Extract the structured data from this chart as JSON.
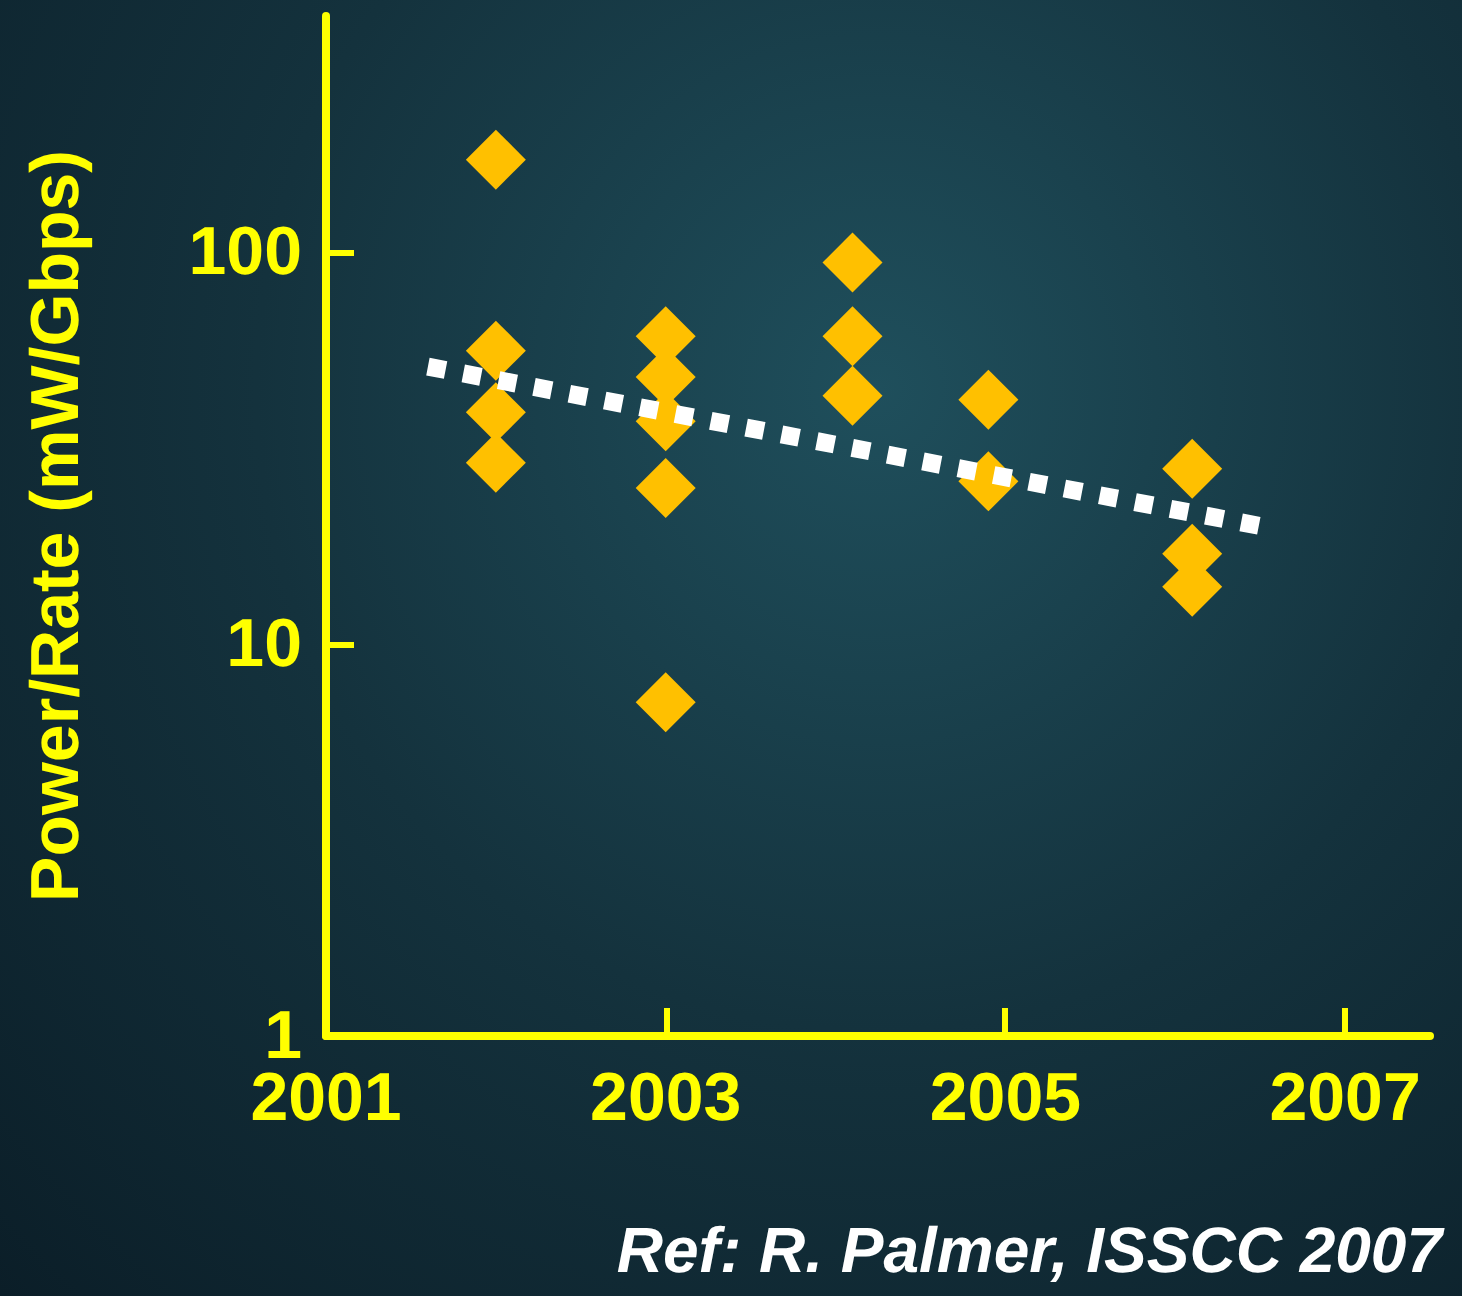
{
  "chart_data": {
    "type": "scatter",
    "ylabel": "Power/Rate (mW/Gbps)",
    "annotations": [
      "Ref: R. Palmer, ISSCC 2007"
    ],
    "log": "y",
    "grid": false,
    "xlim": [
      2001,
      2007.5
    ],
    "xticks": [
      2001,
      2003,
      2005,
      2007
    ],
    "ylim": [
      1,
      400
    ],
    "yticks": [
      1,
      10,
      100
    ],
    "series": [
      {
        "type": "scatter",
        "marker": "diamond",
        "color": "#ffc000",
        "x": [
          2002,
          2002,
          2002,
          2002,
          2003,
          2003,
          2003,
          2003,
          2003,
          2004.1,
          2004.1,
          2004.1,
          2004.9,
          2004.9,
          2006.1,
          2006.1,
          2006.1
        ],
        "values": [
          172,
          56,
          39,
          29,
          61,
          48,
          37,
          25,
          7.1,
          94,
          61,
          43,
          42,
          26,
          28,
          17,
          14
        ]
      },
      {
        "type": "line",
        "line_style": "dotted",
        "color": "#ffffff",
        "x": [
          2001.6,
          2006.5
        ],
        "values": [
          51,
          20
        ]
      }
    ]
  }
}
